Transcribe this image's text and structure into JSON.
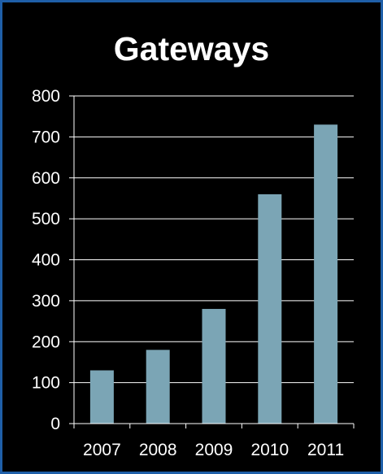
{
  "chart_data": {
    "type": "bar",
    "title": "Gateways",
    "xlabel": "",
    "ylabel": "",
    "categories": [
      "2007",
      "2008",
      "2009",
      "2010",
      "2011"
    ],
    "values": [
      130,
      180,
      280,
      560,
      730
    ],
    "ylim": [
      0,
      800
    ],
    "yticks": [
      0,
      100,
      200,
      300,
      400,
      500,
      600,
      700,
      800
    ],
    "grid": true,
    "legend": "none",
    "colors": {
      "background": "#000000",
      "border": "#1f5fa8",
      "bar": "#7ba5b5",
      "text": "#ffffff",
      "grid": "#ffffff"
    }
  }
}
